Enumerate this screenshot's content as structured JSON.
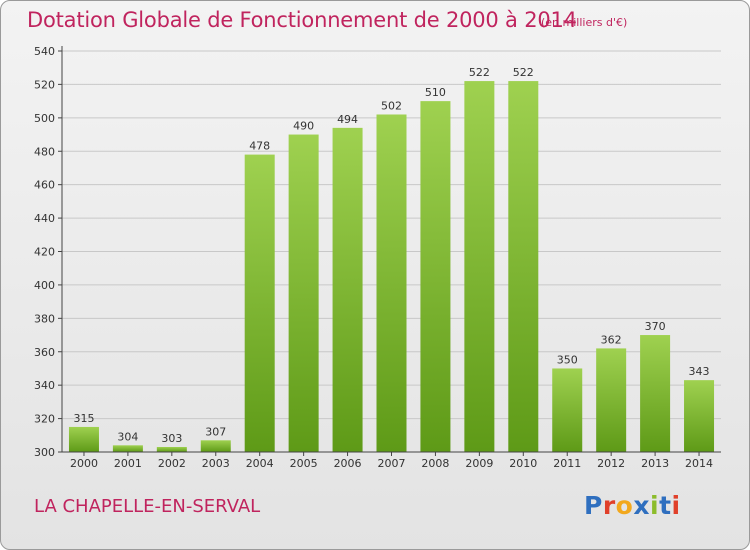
{
  "header": {
    "title": "Dotation Globale de Fonctionnement de 2000 à 2014",
    "subtitle": "(en milliers d'€)"
  },
  "footer": {
    "commune": "LA CHAPELLE-EN-SERVAL",
    "logo_text": "Proxiti",
    "logo_colors": [
      "#2f6fbf",
      "#e0402a",
      "#f2a81d",
      "#2f6fbf",
      "#8cbc2b",
      "#2f6fbf",
      "#e0402a"
    ]
  },
  "colors": {
    "title": "#c0245e",
    "bar_light": "#9fd150",
    "bar_dark": "#5e9a17",
    "grid": "#c8c8c8",
    "axis": "#444444",
    "label": "#333333"
  },
  "chart_data": {
    "type": "bar",
    "title": "Dotation Globale de Fonctionnement de 2000 à 2014",
    "subtitle": "(en milliers d'€)",
    "xlabel": "",
    "ylabel": "",
    "categories": [
      "2000",
      "2001",
      "2002",
      "2003",
      "2004",
      "2005",
      "2006",
      "2007",
      "2008",
      "2009",
      "2010",
      "2011",
      "2012",
      "2013",
      "2014"
    ],
    "values": [
      315,
      304,
      303,
      307,
      478,
      490,
      494,
      502,
      510,
      522,
      522,
      350,
      362,
      370,
      343
    ],
    "ylim": [
      300,
      540
    ],
    "yticks": [
      300,
      320,
      340,
      360,
      380,
      400,
      420,
      440,
      460,
      480,
      500,
      520,
      540
    ],
    "grid": true,
    "data_labels": true
  }
}
